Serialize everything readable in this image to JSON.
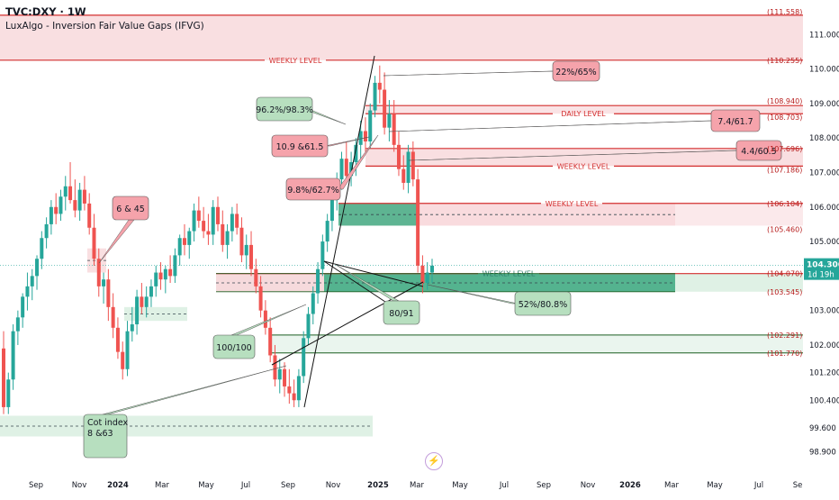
{
  "legend": {
    "symbol": "TVC:DXY · 1W",
    "indicator": "LuxAlgo - Inversion Fair Value Gaps (IFVG)"
  },
  "colors": {
    "up": "#26a69a",
    "down": "#ef5350",
    "level_line": "#d32f2f",
    "zone_red": "#f8d7da",
    "zone_green": "#dcefe2",
    "zone_teal": "#4caf8a",
    "callout_red": "#f5a3ab",
    "callout_green": "#b7dfbf"
  },
  "chart_data": {
    "type": "candlestick",
    "title": "TVC:DXY · 1W",
    "x_ticks": [
      "Sep",
      "Nov",
      "2024",
      "Mar",
      "May",
      "Jul",
      "Sep",
      "Nov",
      "2025",
      "Mar",
      "May",
      "Jul",
      "Sep",
      "Nov",
      "2026",
      "Mar",
      "May",
      "Jul",
      "Se"
    ],
    "y_ticks": [
      "111.000",
      "110.000",
      "109.000",
      "108.000",
      "107.000",
      "106.000",
      "105.000",
      "103.000",
      "102.000",
      "101.200",
      "100.400",
      "99.600",
      "98.900"
    ],
    "ylim": [
      98.6,
      111.9
    ],
    "grid": false,
    "last_price": "104.306",
    "countdown": "1d 19h",
    "price_tags": [
      "(111.558)",
      "(110.255)",
      "(108.940)",
      "(108.703)",
      "(107.696)",
      "(107.186)",
      "(106.104)",
      "(105.460)",
      "(104.070)",
      "(103.545)",
      "(102.291)",
      "(101.770)"
    ],
    "levels": [
      {
        "value": 111.558
      },
      {
        "value": 110.255,
        "label": "WEEKLY LEVEL"
      },
      {
        "value": 108.94
      },
      {
        "value": 108.703,
        "label": "DAILY LEVEL"
      },
      {
        "value": 107.696
      },
      {
        "value": 107.186,
        "label": "WEEKLY LEVEL"
      },
      {
        "value": 106.104,
        "label": "WEEKLY LEVEL"
      },
      {
        "value": 104.07,
        "label": "WEEKLY LEVEL"
      }
    ],
    "callouts": [
      "6 & 45",
      "96.2%/98.3%",
      "10.9 &61.5",
      "9.8%/62.7%",
      "22%/65%",
      "7.4/61.7",
      "4.4/60.5",
      "80/91",
      "52%/80.8%",
      "100/100",
      "Cot index\n8 &63"
    ],
    "candles": [
      [
        101.9,
        102.4,
        100.0,
        100.2
      ],
      [
        100.2,
        101.2,
        100.0,
        101.0
      ],
      [
        101.0,
        102.6,
        100.7,
        102.4
      ],
      [
        102.4,
        103.0,
        102.0,
        102.8
      ],
      [
        102.8,
        103.5,
        102.5,
        103.4
      ],
      [
        103.4,
        104.1,
        103.0,
        103.7
      ],
      [
        103.7,
        104.2,
        103.3,
        104.0
      ],
      [
        104.0,
        104.6,
        103.6,
        104.5
      ],
      [
        104.5,
        105.3,
        104.2,
        105.1
      ],
      [
        105.1,
        105.7,
        104.8,
        105.5
      ],
      [
        105.5,
        106.2,
        105.2,
        106.0
      ],
      [
        106.0,
        106.4,
        105.5,
        105.8
      ],
      [
        105.8,
        106.5,
        105.6,
        106.3
      ],
      [
        106.3,
        106.9,
        105.9,
        106.6
      ],
      [
        106.6,
        107.3,
        106.1,
        106.2
      ],
      [
        106.2,
        106.8,
        105.7,
        105.9
      ],
      [
        105.9,
        106.7,
        105.6,
        106.5
      ],
      [
        106.5,
        106.9,
        105.9,
        106.1
      ],
      [
        106.1,
        106.4,
        105.2,
        105.4
      ],
      [
        105.4,
        105.8,
        104.3,
        104.5
      ],
      [
        104.5,
        104.8,
        103.4,
        103.7
      ],
      [
        103.7,
        104.1,
        103.2,
        103.9
      ],
      [
        103.9,
        104.2,
        102.7,
        103.1
      ],
      [
        103.1,
        103.5,
        102.2,
        102.5
      ],
      [
        102.5,
        102.8,
        101.6,
        101.8
      ],
      [
        101.8,
        102.1,
        101.0,
        101.3
      ],
      [
        101.3,
        102.7,
        101.1,
        102.4
      ],
      [
        102.4,
        103.1,
        102.1,
        102.6
      ],
      [
        102.6,
        103.6,
        102.3,
        103.4
      ],
      [
        103.4,
        103.8,
        102.9,
        103.1
      ],
      [
        103.1,
        103.7,
        102.8,
        103.4
      ],
      [
        103.4,
        103.9,
        103.1,
        103.7
      ],
      [
        103.7,
        104.3,
        103.4,
        104.1
      ],
      [
        104.1,
        104.4,
        103.6,
        103.9
      ],
      [
        103.9,
        104.3,
        103.5,
        104.2
      ],
      [
        104.2,
        104.6,
        103.8,
        104.0
      ],
      [
        104.0,
        104.8,
        103.8,
        104.6
      ],
      [
        104.6,
        105.2,
        104.3,
        105.1
      ],
      [
        105.1,
        105.5,
        104.6,
        104.9
      ],
      [
        104.9,
        105.4,
        104.5,
        105.3
      ],
      [
        105.3,
        106.1,
        105.0,
        105.9
      ],
      [
        105.9,
        106.3,
        105.4,
        105.6
      ],
      [
        105.6,
        106.0,
        105.1,
        105.3
      ],
      [
        105.3,
        105.8,
        104.9,
        105.2
      ],
      [
        105.2,
        106.2,
        104.9,
        106.0
      ],
      [
        106.0,
        106.3,
        105.3,
        105.5
      ],
      [
        105.5,
        105.9,
        104.7,
        104.9
      ],
      [
        104.9,
        105.5,
        104.5,
        105.3
      ],
      [
        105.3,
        106.0,
        105.0,
        105.8
      ],
      [
        105.8,
        106.1,
        105.2,
        105.4
      ],
      [
        105.4,
        105.7,
        104.4,
        104.6
      ],
      [
        104.6,
        105.2,
        104.2,
        104.9
      ],
      [
        104.9,
        105.3,
        104.0,
        104.2
      ],
      [
        104.2,
        104.5,
        103.5,
        103.7
      ],
      [
        103.7,
        104.0,
        102.8,
        103.0
      ],
      [
        103.0,
        103.3,
        102.3,
        102.5
      ],
      [
        102.5,
        102.8,
        101.5,
        101.7
      ],
      [
        101.7,
        102.0,
        100.8,
        101.0
      ],
      [
        101.0,
        101.6,
        100.6,
        101.3
      ],
      [
        101.3,
        101.5,
        100.5,
        100.8
      ],
      [
        100.8,
        101.3,
        100.3,
        100.6
      ],
      [
        100.6,
        101.0,
        100.2,
        100.4
      ],
      [
        100.4,
        101.3,
        100.2,
        101.1
      ],
      [
        101.1,
        102.4,
        100.9,
        102.2
      ],
      [
        102.2,
        103.1,
        102.0,
        102.9
      ],
      [
        102.9,
        103.7,
        102.6,
        103.5
      ],
      [
        103.5,
        104.4,
        103.2,
        104.2
      ],
      [
        104.2,
        105.2,
        104.0,
        105.0
      ],
      [
        105.0,
        105.8,
        104.7,
        105.6
      ],
      [
        105.6,
        106.4,
        105.3,
        106.2
      ],
      [
        106.2,
        107.0,
        105.9,
        106.8
      ],
      [
        106.8,
        107.6,
        106.5,
        107.4
      ],
      [
        107.4,
        107.9,
        106.7,
        106.9
      ],
      [
        106.9,
        107.6,
        106.6,
        107.3
      ],
      [
        107.3,
        108.0,
        106.9,
        107.8
      ],
      [
        107.8,
        108.5,
        107.4,
        108.2
      ],
      [
        108.2,
        108.6,
        107.6,
        107.9
      ],
      [
        107.9,
        109.0,
        107.7,
        108.8
      ],
      [
        108.8,
        109.8,
        108.6,
        109.6
      ],
      [
        109.6,
        110.1,
        109.0,
        109.4
      ],
      [
        109.4,
        109.9,
        108.1,
        108.3
      ],
      [
        108.3,
        109.1,
        107.9,
        108.7
      ],
      [
        108.7,
        109.1,
        107.6,
        107.8
      ],
      [
        107.8,
        108.2,
        106.9,
        107.1
      ],
      [
        107.1,
        107.5,
        106.5,
        106.7
      ],
      [
        106.7,
        107.8,
        106.4,
        107.6
      ],
      [
        107.6,
        107.9,
        106.6,
        106.8
      ],
      [
        106.8,
        107.1,
        104.1,
        104.3
      ],
      [
        104.3,
        104.6,
        103.5,
        103.8
      ],
      [
        103.8,
        104.4,
        103.6,
        104.1
      ],
      [
        104.1,
        104.5,
        103.8,
        104.3
      ]
    ]
  }
}
